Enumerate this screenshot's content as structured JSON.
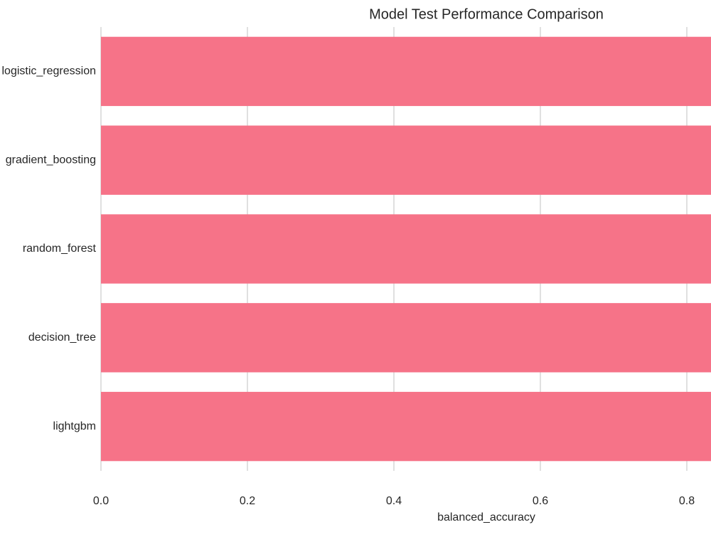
{
  "chart_data": {
    "type": "barh",
    "title": "Model Test Performance Comparison",
    "categories": [
      "logistic_regression",
      "gradient_boosting",
      "random_forest",
      "decision_tree",
      "lightgbm"
    ],
    "values": [
      0.85,
      0.85,
      0.85,
      0.85,
      0.85
    ],
    "color": "#f67388",
    "xlabel": "balanced_accuracy",
    "xlim": [
      0,
      0.833
    ],
    "xticks": [
      {
        "value": 0,
        "label": "0.0"
      },
      0.2,
      0.4,
      0.6,
      0.8
    ],
    "grid": true
  }
}
